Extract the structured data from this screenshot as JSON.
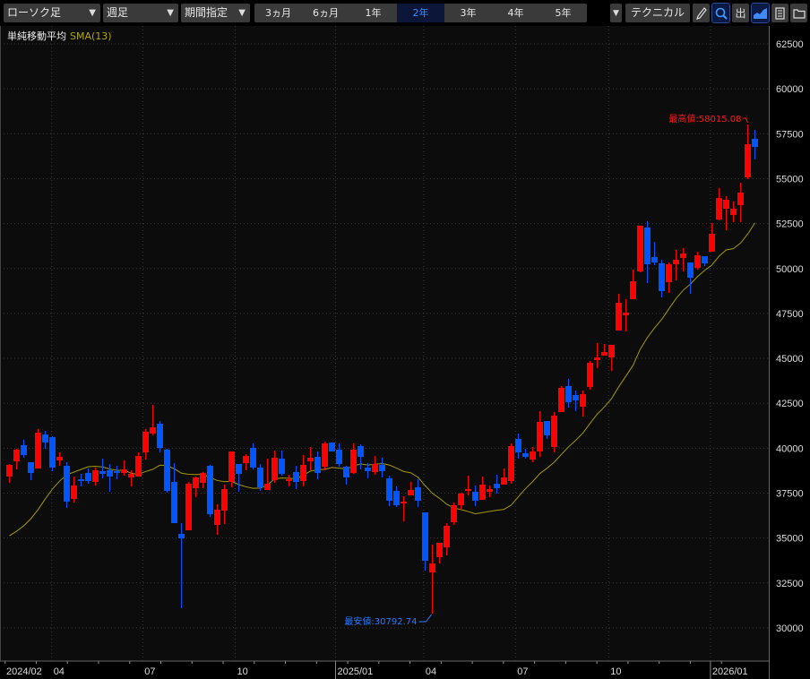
{
  "toolbar": {
    "chart_type": "ローソク足",
    "interval": "週足",
    "period_mode": "期間指定",
    "ranges": [
      "3ヵ月",
      "6ヵ月",
      "1年",
      "2年",
      "3年",
      "4年",
      "5年"
    ],
    "selected_range": "2年",
    "technical_label": "テクニカル",
    "extra_dropdown_icon": "chevron-down-icon",
    "icons": [
      "pencil-icon",
      "zoom-icon",
      "chart-output-icon",
      "area-chart-icon",
      "memo-icon",
      "folder-icon"
    ],
    "output_label": "出"
  },
  "legend": {
    "indicator": "単純移動平均",
    "series": "SMA(13)"
  },
  "colors": {
    "up": "#ff0000",
    "down": "#0055ff",
    "sma": "#a09a00",
    "background": "#0c0c0c",
    "grid": "#3a3a3a",
    "high_label": "#ff1a1a",
    "low_label": "#2a7aff"
  },
  "chart_data": {
    "type": "candlestick",
    "interval": "weekly",
    "ylim": [
      28000,
      63500
    ],
    "y_ticks": [
      62500,
      60000,
      57500,
      55000,
      52500,
      50000,
      47500,
      45000,
      42500,
      40000,
      37500,
      35000,
      32500,
      30000
    ],
    "x_ticks": [
      {
        "label": "2024/02",
        "index": -0.6
      },
      {
        "label": "04",
        "index": 5.9
      },
      {
        "label": "07",
        "index": 18.6
      },
      {
        "label": "10",
        "index": 31.5
      },
      {
        "label": "2025/01",
        "index": 45.5
      },
      {
        "label": "04",
        "index": 57.8
      },
      {
        "label": "07",
        "index": 70.6
      },
      {
        "label": "10",
        "index": 83.6
      },
      {
        "label": "2026/01",
        "index": 97.8
      }
    ],
    "grid": true,
    "annotations": {
      "high": {
        "label": "最高値:58015.08",
        "value": 58015.08,
        "index": 103
      },
      "low": {
        "label": "最安値:30792.74",
        "value": 30792.74,
        "index": 59
      }
    },
    "sma_period": 13,
    "sma_initial": [
      35130,
      35380,
      35680,
      36080,
      36580,
      37180,
      37730,
      38170,
      38520,
      38670,
      38820,
      38970
    ],
    "ohlc": [
      [
        38420,
        39120,
        38070,
        39070
      ],
      [
        39270,
        39970,
        38820,
        39920
      ],
      [
        40170,
        40470,
        39470,
        39620
      ],
      [
        39220,
        39220,
        38220,
        38620
      ],
      [
        38870,
        41065,
        38870,
        40865
      ],
      [
        40765,
        40965,
        39970,
        40320
      ],
      [
        40615,
        40665,
        38720,
        38920
      ],
      [
        39320,
        39770,
        39020,
        39520
      ],
      [
        39020,
        39220,
        36680,
        37030
      ],
      [
        37176,
        38423,
        36977,
        37924
      ],
      [
        38273,
        38572,
        37874,
        38174
      ],
      [
        38622,
        38871,
        38024,
        38174
      ],
      [
        38124,
        38921,
        37924,
        38772
      ],
      [
        38722,
        39420,
        38323,
        38572
      ],
      [
        38772,
        39121,
        37575,
        38423
      ],
      [
        38722,
        39021,
        38273,
        38622
      ],
      [
        38622,
        39320,
        38473,
        38822
      ],
      [
        38373,
        38772,
        37874,
        38572
      ],
      [
        38423,
        39769,
        38423,
        39569
      ],
      [
        39769,
        41065,
        39370,
        40915
      ],
      [
        40816,
        42411,
        40716,
        41165
      ],
      [
        41364,
        41514,
        39769,
        40018
      ],
      [
        39918,
        39968,
        37525,
        37625
      ],
      [
        38124,
        39171,
        35830,
        35830
      ],
      [
        35232,
        35831,
        31095,
        34983
      ],
      [
        35432,
        38124,
        35432,
        38024
      ],
      [
        37775,
        38423,
        37276,
        38373
      ],
      [
        38074,
        38672,
        37775,
        38622
      ],
      [
        39021,
        39071,
        36180,
        36329
      ],
      [
        35731,
        36877,
        35183,
        36578
      ],
      [
        36528,
        37974,
        35781,
        37725
      ],
      [
        38124,
        39819,
        37824,
        39819
      ],
      [
        39121,
        39121,
        37575,
        38572
      ],
      [
        39171,
        39669,
        38772,
        39569
      ],
      [
        40018,
        40267,
        38822,
        38921
      ],
      [
        38921,
        39121,
        37625,
        37824
      ],
      [
        37675,
        39420,
        37675,
        38024
      ],
      [
        38224,
        39868,
        38074,
        39470
      ],
      [
        39420,
        39868,
        38473,
        38572
      ],
      [
        38174,
        38522,
        37874,
        38273
      ],
      [
        38672,
        39021,
        37725,
        38124
      ],
      [
        38174,
        39619,
        37874,
        39071
      ],
      [
        39270,
        40068,
        38772,
        39470
      ],
      [
        39520,
        39819,
        38273,
        38622
      ],
      [
        38971,
        40367,
        38772,
        40267
      ],
      [
        40317,
        40317,
        39819,
        39819
      ],
      [
        39918,
        40267,
        38971,
        39121
      ],
      [
        38971,
        39021,
        37974,
        38373
      ],
      [
        38622,
        40267,
        38572,
        39918
      ],
      [
        40118,
        40217,
        38822,
        39520
      ],
      [
        38921,
        39171,
        38323,
        38722
      ],
      [
        38672,
        39569,
        38522,
        39121
      ],
      [
        39071,
        39470,
        38373,
        38722
      ],
      [
        38323,
        38473,
        36777,
        37077
      ],
      [
        37625,
        37874,
        36728,
        36827
      ],
      [
        36927,
        37326,
        35930,
        37027
      ],
      [
        37376,
        38124,
        37376,
        37675
      ],
      [
        37824,
        38273,
        36728,
        37077
      ],
      [
        36429,
        36429,
        33189,
        33738
      ],
      [
        33089,
        34634,
        30792.74,
        33587
      ],
      [
        33937,
        34734,
        33587,
        34734
      ],
      [
        34485,
        35831,
        34036,
        35681
      ],
      [
        35881,
        36977,
        35731,
        36827
      ],
      [
        36827,
        37526,
        36578,
        37476
      ],
      [
        37625,
        38473,
        37376,
        37725
      ],
      [
        37575,
        37924,
        36777,
        37077
      ],
      [
        37127,
        38423,
        37127,
        37974
      ],
      [
        37575,
        37924,
        37276,
        37725
      ],
      [
        38024,
        38522,
        37476,
        37775
      ],
      [
        37974,
        38872,
        37974,
        38373
      ],
      [
        38174,
        40267,
        38024,
        40118
      ],
      [
        40517,
        40816,
        39420,
        39769
      ],
      [
        39719,
        39968,
        39420,
        39520
      ],
      [
        39370,
        40068,
        39220,
        39819
      ],
      [
        39819,
        42062,
        39520,
        41464
      ],
      [
        41514,
        41514,
        40517,
        40716
      ],
      [
        40068,
        42012,
        39769,
        41813
      ],
      [
        42012,
        43458,
        42012,
        43358
      ],
      [
        43458,
        43857,
        42261,
        42560
      ],
      [
        42959,
        43208,
        42062,
        42660
      ],
      [
        42311,
        43208,
        41764,
        43009
      ],
      [
        43408,
        44854,
        43258,
        44754
      ],
      [
        44904,
        45851,
        44455,
        45053
      ],
      [
        45153,
        45801,
        45153,
        45352
      ],
      [
        45053,
        45751,
        44305,
        45751
      ],
      [
        46550,
        48594,
        46550,
        48095
      ],
      [
        47395,
        48292,
        46500,
        47545
      ],
      [
        48292,
        49937,
        48292,
        49289
      ],
      [
        49838,
        52380,
        49788,
        52380
      ],
      [
        52281,
        52630,
        49189,
        50236
      ],
      [
        50635,
        51484,
        50186,
        50336
      ],
      [
        50287,
        50486,
        48393,
        48742
      ],
      [
        49239,
        50336,
        48643,
        50236
      ],
      [
        50236,
        51034,
        49338,
        50486
      ],
      [
        50586,
        51134,
        49838,
        50835
      ],
      [
        50336,
        50336,
        48593,
        49488
      ],
      [
        50037,
        50934,
        49937,
        50735
      ],
      [
        50685,
        50685,
        50137,
        50287
      ],
      [
        50934,
        52530,
        50934,
        51932
      ],
      [
        52729,
        54474,
        52679,
        53925
      ],
      [
        53327,
        54025,
        52131,
        53825
      ],
      [
        52978,
        53726,
        52580,
        53327
      ],
      [
        53526,
        54773,
        52580,
        54225
      ],
      [
        55071,
        58015.08,
        54973,
        56915
      ],
      [
        57216,
        57715,
        56070,
        56767
      ]
    ]
  }
}
